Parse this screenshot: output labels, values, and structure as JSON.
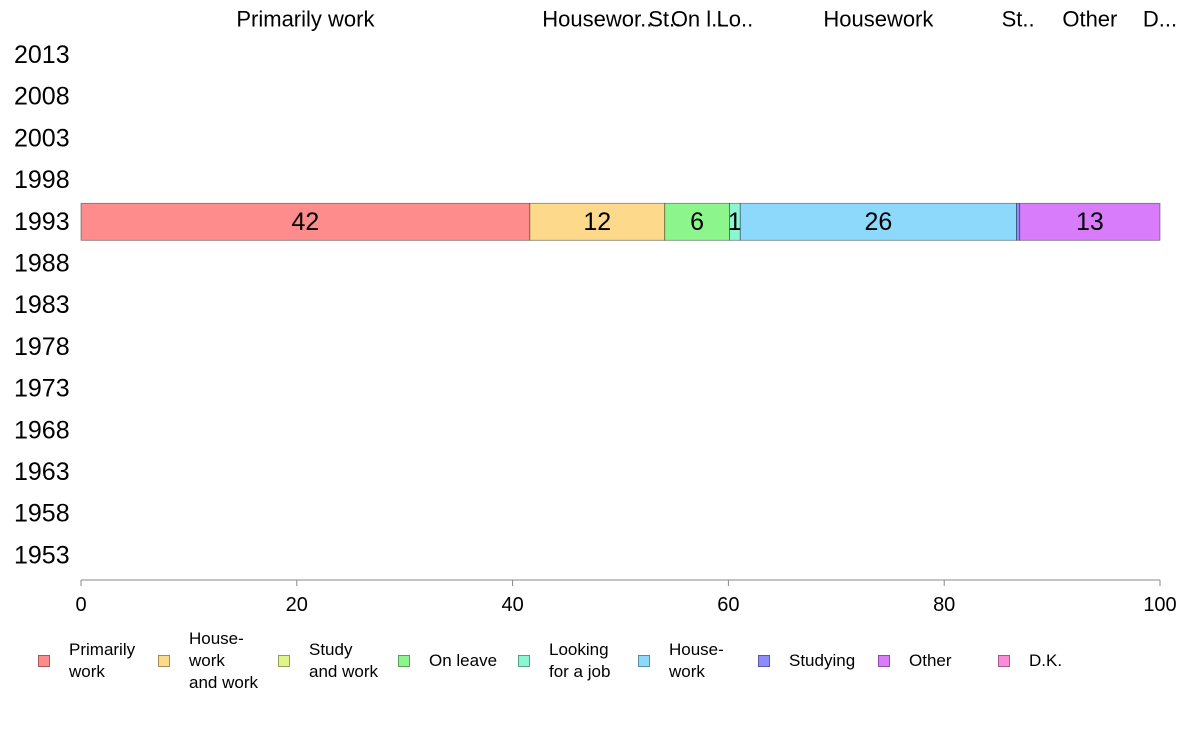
{
  "chart_data": {
    "type": "bar",
    "orientation": "horizontal",
    "stacked": true,
    "categories": [
      "2013",
      "2008",
      "2003",
      "1998",
      "1993",
      "1988",
      "1983",
      "1978",
      "1973",
      "1968",
      "1963",
      "1958",
      "1953"
    ],
    "series": [
      {
        "name": "Primarily work",
        "legend_label": [
          "Primarily",
          "work"
        ],
        "header": "Primarily work",
        "color": "#ff8c8c",
        "values": [
          null,
          null,
          null,
          null,
          41.6,
          null,
          null,
          null,
          null,
          null,
          null,
          null,
          null
        ],
        "label": "42"
      },
      {
        "name": "House-work and work",
        "legend_label": [
          "House-",
          "work",
          "and work"
        ],
        "header": "Housewor..",
        "color": "#fcd98b",
        "values": [
          null,
          null,
          null,
          null,
          12.5,
          null,
          null,
          null,
          null,
          null,
          null,
          null,
          null
        ],
        "label": "12"
      },
      {
        "name": "Study and work",
        "legend_label": [
          "Study",
          "and work"
        ],
        "header": "St..",
        "color": "#dff58c",
        "values": [
          null,
          null,
          null,
          null,
          0.0,
          null,
          null,
          null,
          null,
          null,
          null,
          null,
          null
        ],
        "label": ""
      },
      {
        "name": "On leave",
        "legend_label": [
          "On leave"
        ],
        "header": "On l..",
        "color": "#8cf58c",
        "values": [
          null,
          null,
          null,
          null,
          6.0,
          null,
          null,
          null,
          null,
          null,
          null,
          null,
          null
        ],
        "label": "6"
      },
      {
        "name": "Looking for a job",
        "legend_label": [
          "Looking",
          "for a job"
        ],
        "header": "Lo..",
        "color": "#8cf5d2",
        "values": [
          null,
          null,
          null,
          null,
          1.0,
          null,
          null,
          null,
          null,
          null,
          null,
          null,
          null
        ],
        "label": "1"
      },
      {
        "name": "House-work",
        "legend_label": [
          "House-",
          "work"
        ],
        "header": "Housework",
        "color": "#8cd9fc",
        "values": [
          null,
          null,
          null,
          null,
          25.6,
          null,
          null,
          null,
          null,
          null,
          null,
          null,
          null
        ],
        "label": "26"
      },
      {
        "name": "Studying",
        "legend_label": [
          "Studying"
        ],
        "header": "St..",
        "color": "#8c8cfc",
        "values": [
          null,
          null,
          null,
          null,
          0.3,
          null,
          null,
          null,
          null,
          null,
          null,
          null,
          null
        ],
        "label": ""
      },
      {
        "name": "Other",
        "legend_label": [
          "Other"
        ],
        "header": "Other",
        "color": "#d97cfc",
        "values": [
          null,
          null,
          null,
          null,
          13.0,
          null,
          null,
          null,
          null,
          null,
          null,
          null,
          null
        ],
        "label": "13"
      },
      {
        "name": "D.K.",
        "legend_label": [
          "D.K."
        ],
        "header": "D...",
        "color": "#fc8cd9",
        "values": [
          null,
          null,
          null,
          null,
          0.0,
          null,
          null,
          null,
          null,
          null,
          null,
          null,
          null
        ],
        "label": ""
      }
    ],
    "xlim": [
      0,
      100
    ],
    "xticks": [
      0,
      20,
      40,
      60,
      80,
      100
    ],
    "title": "",
    "xlabel": "",
    "ylabel": "",
    "grid": false,
    "legend_position": "bottom"
  }
}
